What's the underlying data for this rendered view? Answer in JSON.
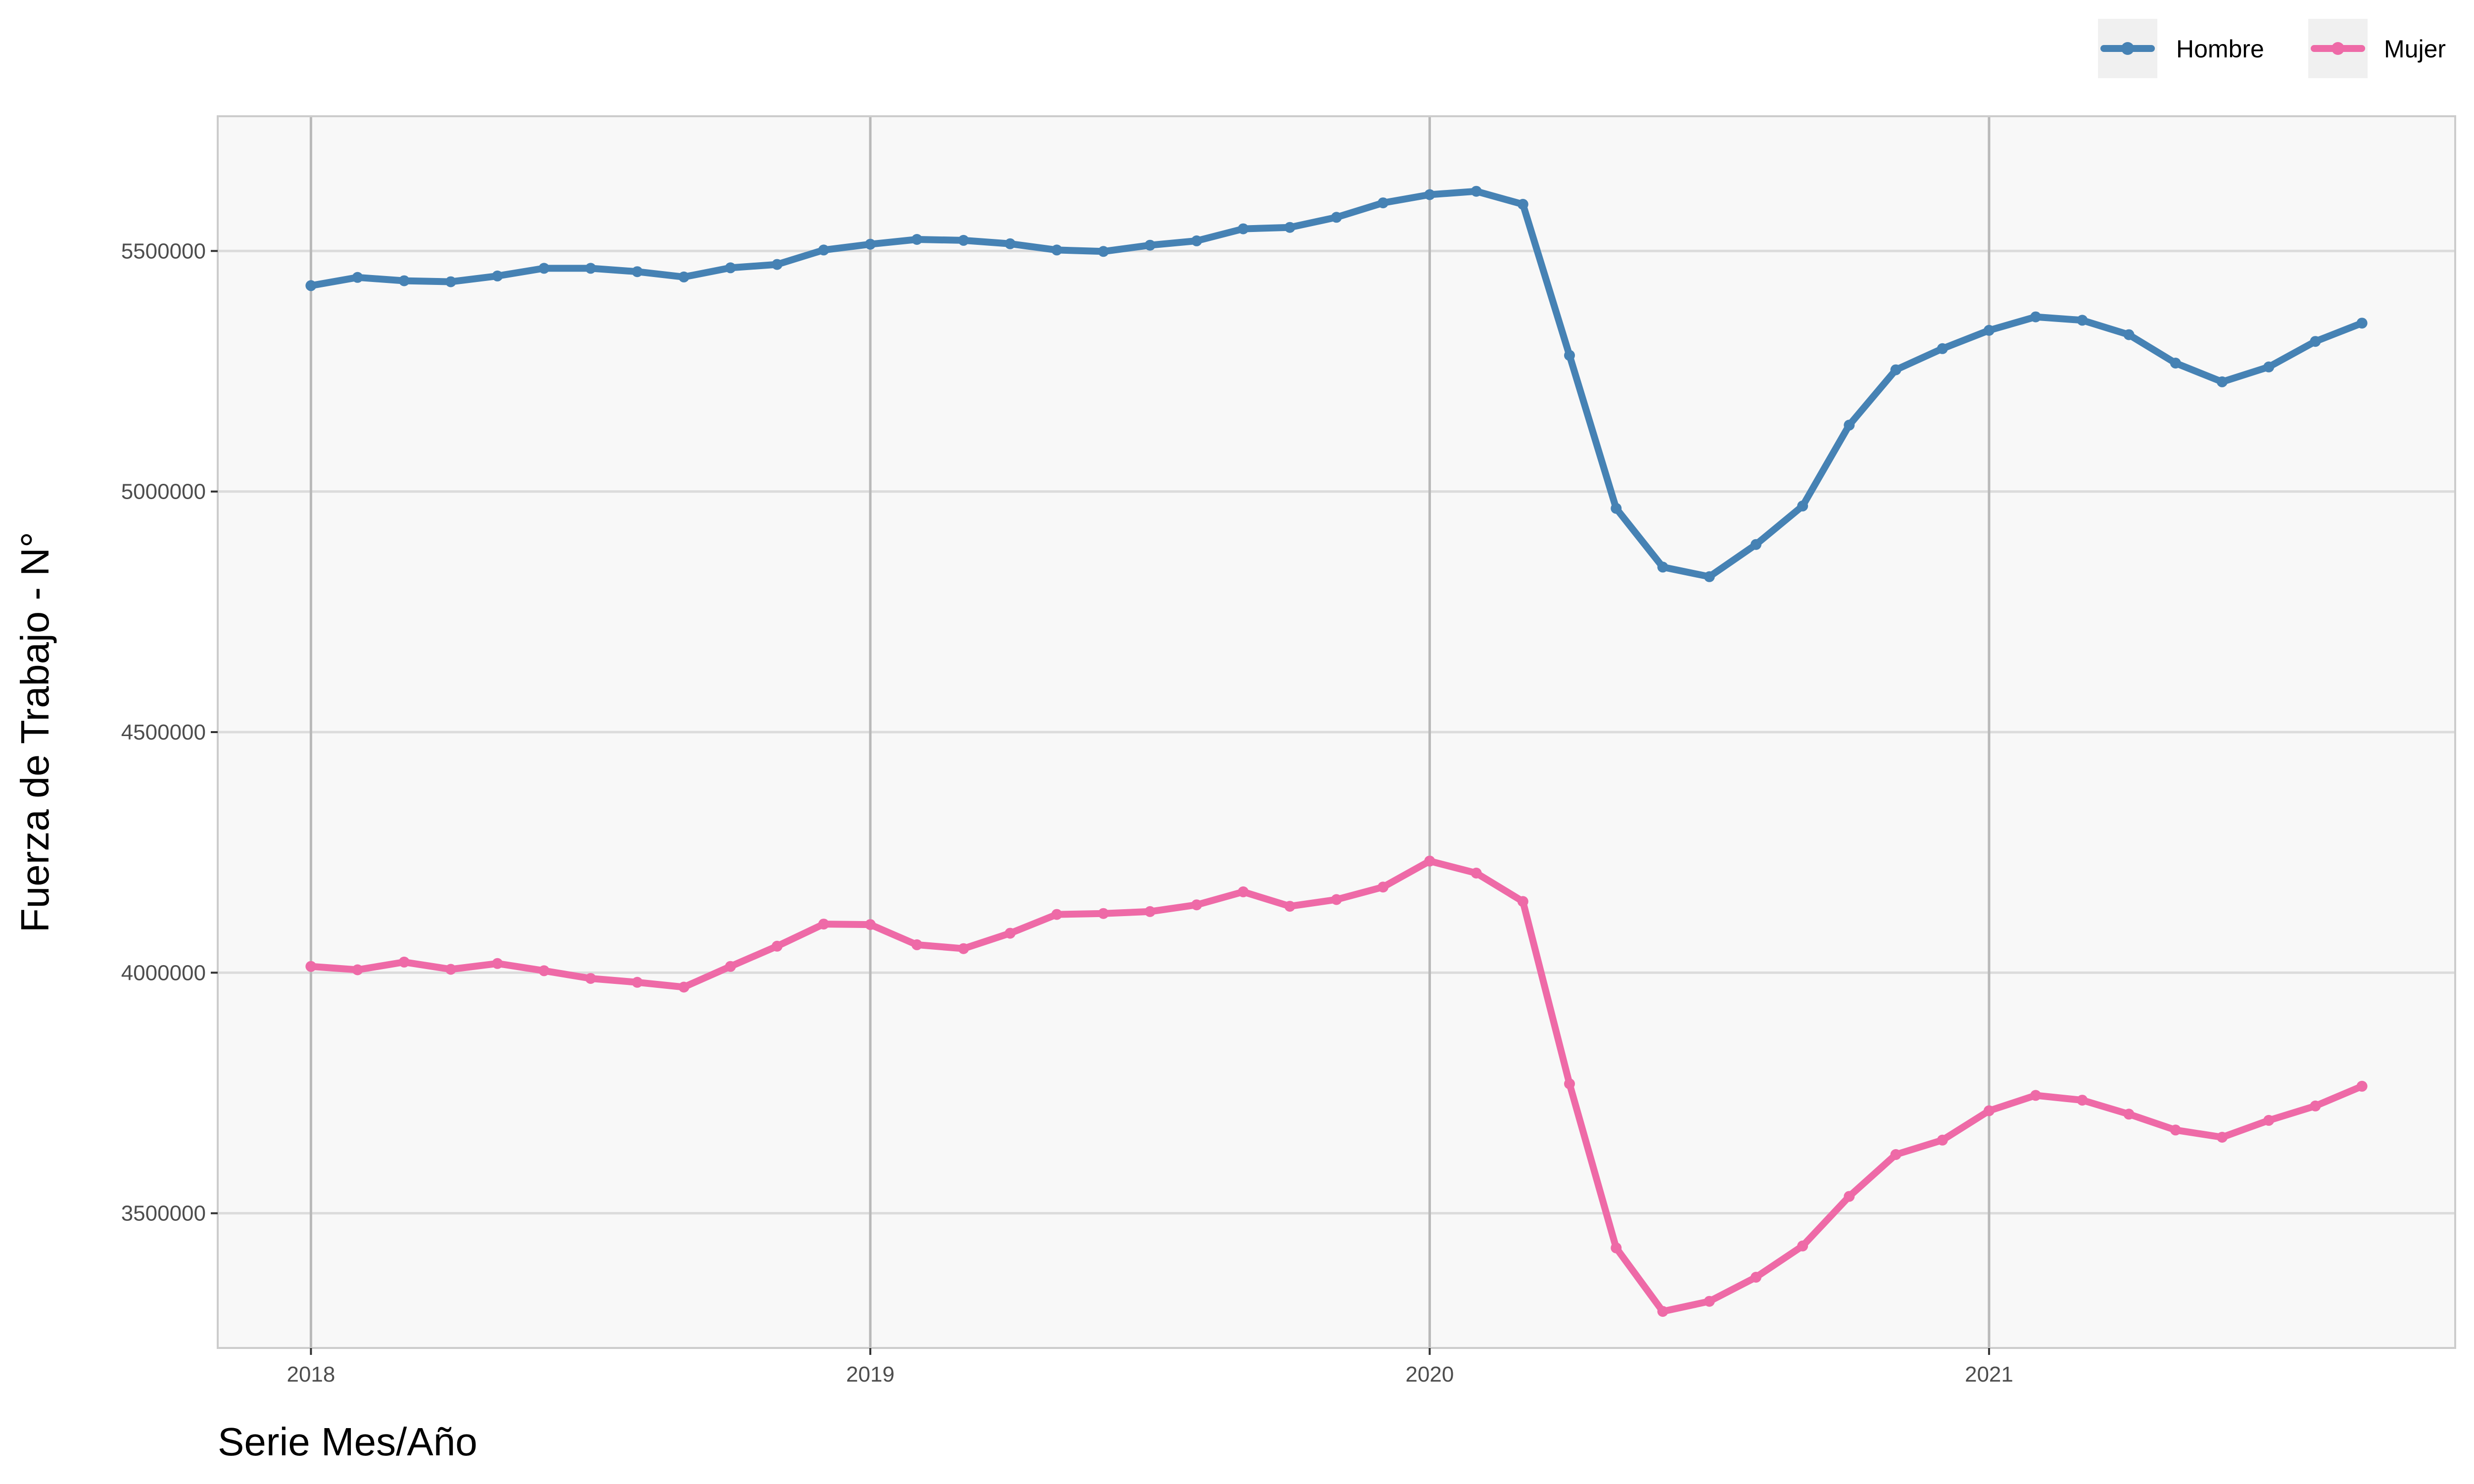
{
  "chart_data": {
    "type": "line",
    "xlabel": "Serie Mes/Año",
    "ylabel": "Fuerza de Trabajo - N°",
    "x_tick_labels": [
      "2018",
      "2019",
      "2020",
      "2021"
    ],
    "y_tick_labels": [
      "3500000",
      "4000000",
      "4500000",
      "5000000",
      "5500000"
    ],
    "xlim": [
      "2017-11",
      "2021-11"
    ],
    "ylim": [
      3220000,
      5780000
    ],
    "grid": true,
    "legend_position": "top-right",
    "x": [
      "2018-01",
      "2018-02",
      "2018-03",
      "2018-04",
      "2018-05",
      "2018-06",
      "2018-07",
      "2018-08",
      "2018-09",
      "2018-10",
      "2018-11",
      "2018-12",
      "2019-01",
      "2019-02",
      "2019-03",
      "2019-04",
      "2019-05",
      "2019-06",
      "2019-07",
      "2019-08",
      "2019-09",
      "2019-10",
      "2019-11",
      "2019-12",
      "2020-01",
      "2020-02",
      "2020-03",
      "2020-04",
      "2020-05",
      "2020-06",
      "2020-07",
      "2020-08",
      "2020-09",
      "2020-10",
      "2020-11",
      "2020-12",
      "2021-01",
      "2021-02",
      "2021-03",
      "2021-04",
      "2021-05",
      "2021-06",
      "2021-07",
      "2021-08",
      "2021-09"
    ],
    "series": [
      {
        "name": "Hombre",
        "color": "#4682B4",
        "values": [
          5428000,
          5445000,
          5438000,
          5436000,
          5448000,
          5464000,
          5464000,
          5457000,
          5446000,
          5465000,
          5472000,
          5502000,
          5514000,
          5524000,
          5522000,
          5515000,
          5502000,
          5499000,
          5512000,
          5521000,
          5546000,
          5549000,
          5570000,
          5600000,
          5617000,
          5624000,
          5597000,
          5283000,
          4965000,
          4843000,
          4823000,
          4890000,
          4970000,
          5138000,
          5253000,
          5297000,
          5335000,
          5363000,
          5356000,
          5326000,
          5267000,
          5228000,
          5259000,
          5312000,
          5350000
        ]
      },
      {
        "name": "Mujer",
        "color": "#EE6AA7",
        "values": [
          4013000,
          4006000,
          4022000,
          4007000,
          4019000,
          4004000,
          3988000,
          3980000,
          3970000,
          4013000,
          4055000,
          4101000,
          4100000,
          4058000,
          4050000,
          4082000,
          4121000,
          4123000,
          4127000,
          4141000,
          4168000,
          4138000,
          4152000,
          4178000,
          4232000,
          4207000,
          4148000,
          3769000,
          3428000,
          3296000,
          3317000,
          3367000,
          3432000,
          3535000,
          3622000,
          3652000,
          3713000,
          3745000,
          3735000,
          3706000,
          3673000,
          3658000,
          3693000,
          3723000,
          3764000
        ]
      }
    ]
  }
}
